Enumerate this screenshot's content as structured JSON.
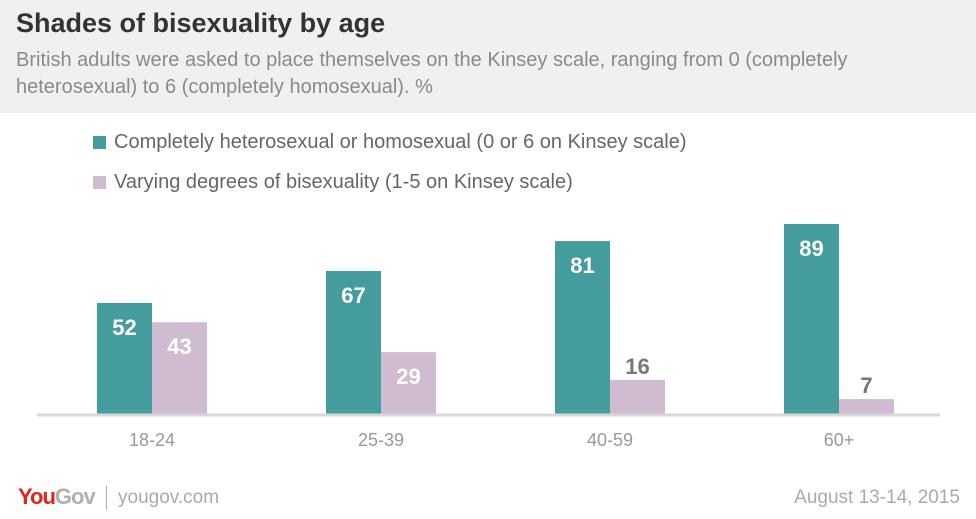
{
  "chart_data": {
    "type": "bar",
    "title": "Shades of bisexuality by age",
    "subtitle": "British adults were asked to place themselves on the Kinsey scale, ranging from 0 (completely heterosexual) to 6 (completely homosexual). %",
    "categories": [
      "18-24",
      "25-39",
      "40-59",
      "60+"
    ],
    "series": [
      {
        "name": "Completely heterosexual or homosexual (0 or 6 on Kinsey scale)",
        "values": [
          52,
          67,
          81,
          89
        ],
        "color": "#459c9c"
      },
      {
        "name": "Varying degrees of bisexuality (1-5 on Kinsey scale)",
        "values": [
          43,
          29,
          16,
          7
        ],
        "color": "#cfbcd0"
      }
    ],
    "ylim": [
      0,
      100
    ],
    "grid": false,
    "legend": "top-left"
  },
  "footer": {
    "brand": "YouGov",
    "site": "yougov.com",
    "date": "August 13-14, 2015"
  }
}
